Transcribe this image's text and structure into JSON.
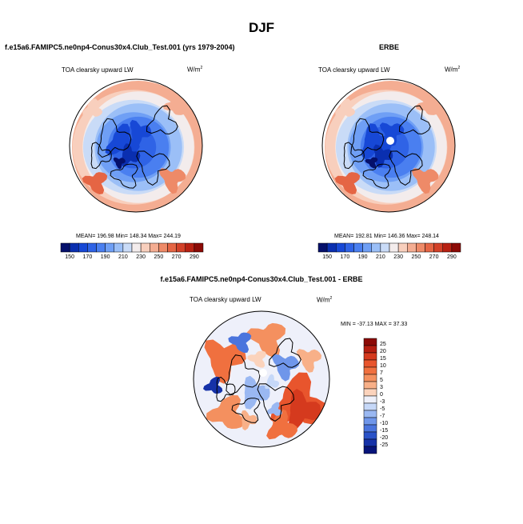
{
  "figure": {
    "season": "DJF",
    "panel_model": {
      "title": "f.e15a6.FAMIPC5.ne0np4-Conus30x4.Club_Test.001 (yrs 1979-2004)",
      "variable": "TOA clearsky upward LW",
      "units": "W/m",
      "units_sup": "2",
      "stats": "MEAN= 196.98  Min= 148.34  Max= 244.19"
    },
    "panel_obs": {
      "title": "ERBE",
      "variable": "TOA clearsky upward LW",
      "units": "W/m",
      "units_sup": "2",
      "stats": "MEAN= 192.81  Min= 146.36  Max= 248.14"
    },
    "panel_diff": {
      "title": "f.e15a6.FAMIPC5.ne0np4-Conus30x4.Club_Test.001 - ERBE",
      "variable": "TOA clearsky upward LW",
      "units": "W/m",
      "units_sup": "2",
      "minmax": "MIN = -37.13  MAX =  37.33"
    }
  },
  "chart_data": [
    {
      "type": "heatmap",
      "projection": "north-polar-stereographic",
      "title": "f.e15a6.FAMIPC5.ne0np4-Conus30x4.Club_Test.001 (yrs 1979-2004)",
      "variable": "TOA clearsky upward LW",
      "units": "W/m2",
      "mean": 196.98,
      "min": 148.34,
      "max": 244.19,
      "colorbar": {
        "orientation": "horizontal",
        "tick_labels": [
          "150",
          "170",
          "190",
          "210",
          "230",
          "250",
          "270",
          "290"
        ],
        "levels": [
          150,
          160,
          170,
          180,
          190,
          200,
          210,
          220,
          230,
          240,
          250,
          260,
          270,
          280,
          290
        ],
        "colors": [
          "#05106b",
          "#0a2fb0",
          "#1748d6",
          "#2f63e6",
          "#4a7ff0",
          "#6f9ff5",
          "#9bbff7",
          "#c9dbf7",
          "#f3ecec",
          "#f8cfbd",
          "#f4ad92",
          "#ee8a68",
          "#e56544",
          "#d34128",
          "#b82112",
          "#8c0a06"
        ]
      }
    },
    {
      "type": "heatmap",
      "projection": "north-polar-stereographic",
      "title": "ERBE",
      "variable": "TOA clearsky upward LW",
      "units": "W/m2",
      "mean": 192.81,
      "min": 146.36,
      "max": 248.14,
      "colorbar": {
        "orientation": "horizontal",
        "tick_labels": [
          "150",
          "170",
          "190",
          "210",
          "230",
          "250",
          "270",
          "290"
        ],
        "levels": [
          150,
          160,
          170,
          180,
          190,
          200,
          210,
          220,
          230,
          240,
          250,
          260,
          270,
          280,
          290
        ],
        "colors": [
          "#05106b",
          "#0a2fb0",
          "#1748d6",
          "#2f63e6",
          "#4a7ff0",
          "#6f9ff5",
          "#9bbff7",
          "#c9dbf7",
          "#f3ecec",
          "#f8cfbd",
          "#f4ad92",
          "#ee8a68",
          "#e56544",
          "#d34128",
          "#b82112",
          "#8c0a06"
        ]
      }
    },
    {
      "type": "heatmap",
      "projection": "north-polar-stereographic",
      "title": "f.e15a6.FAMIPC5.ne0np4-Conus30x4.Club_Test.001 - ERBE",
      "variable": "TOA clearsky upward LW",
      "units": "W/m2",
      "min": -37.13,
      "max": 37.33,
      "colorbar": {
        "orientation": "vertical",
        "tick_labels": [
          "25",
          "20",
          "15",
          "10",
          "7",
          "5",
          "3",
          "0",
          "-3",
          "-5",
          "-7",
          "-10",
          "-15",
          "-20",
          "-25"
        ],
        "colors": [
          "#8c0a06",
          "#b51e10",
          "#d53a1e",
          "#e8552d",
          "#f0703f",
          "#f4905f",
          "#f8b088",
          "#fbd3bc",
          "#eef0fa",
          "#c6d8f8",
          "#9ab8f2",
          "#6f96ea",
          "#4a74dd",
          "#2a52c8",
          "#1632a8",
          "#07147a"
        ]
      }
    }
  ]
}
